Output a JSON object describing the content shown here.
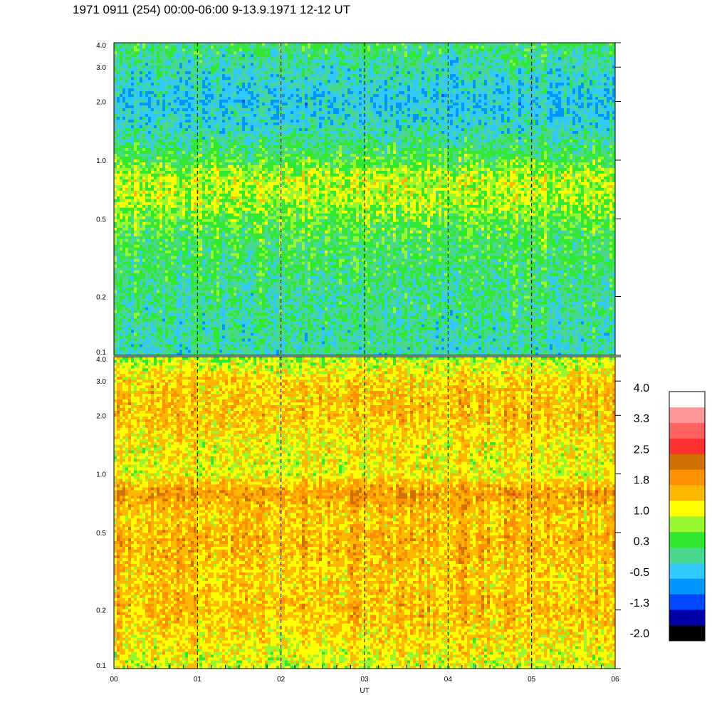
{
  "title": "1971 0911 (254) 00:00-06:00 9-13.9.1971  12-12 UT",
  "chart_data": {
    "type": "heatmap",
    "title": "1971 0911 (254) 00:00-06:00 9-13.9.1971  12-12 UT",
    "xlabel": "UT",
    "ylabel": "",
    "x_ticks": [
      "00",
      "01",
      "02",
      "03",
      "04",
      "05",
      "06"
    ],
    "x_range": [
      0,
      6
    ],
    "dashed_hour_lines": [
      1,
      2,
      3,
      4,
      5
    ],
    "y_scale": "log",
    "y_range": [
      0.1,
      4.0
    ],
    "y_ticks": [
      {
        "value": 4.0,
        "label": "4.0"
      },
      {
        "value": 3.0,
        "label": "3.0"
      },
      {
        "value": 2.0,
        "label": "2.0"
      },
      {
        "value": 1.0,
        "label": "1.0"
      },
      {
        "value": 0.5,
        "label": "0.5"
      },
      {
        "value": 0.2,
        "label": "0.2"
      },
      {
        "value": 0.1,
        "label": "0.1"
      }
    ],
    "panels": [
      {
        "name": "upper",
        "profile": [
          {
            "y": 0.1,
            "level": 0.0
          },
          {
            "y": 0.15,
            "level": 0.1
          },
          {
            "y": 0.2,
            "level": 0.15
          },
          {
            "y": 0.3,
            "level": 0.3
          },
          {
            "y": 0.45,
            "level": 0.5
          },
          {
            "y": 0.6,
            "level": 0.9
          },
          {
            "y": 0.8,
            "level": 1.0
          },
          {
            "y": 1.0,
            "level": 0.5
          },
          {
            "y": 1.5,
            "level": -0.1
          },
          {
            "y": 2.0,
            "level": -0.3
          },
          {
            "y": 3.0,
            "level": 0.0
          },
          {
            "y": 4.0,
            "level": 0.3
          }
        ]
      },
      {
        "name": "lower",
        "profile": [
          {
            "y": 0.1,
            "level": 1.1
          },
          {
            "y": 0.15,
            "level": 1.4
          },
          {
            "y": 0.2,
            "level": 1.6
          },
          {
            "y": 0.3,
            "level": 1.5
          },
          {
            "y": 0.45,
            "level": 1.7
          },
          {
            "y": 0.6,
            "level": 1.5
          },
          {
            "y": 0.8,
            "level": 1.9
          },
          {
            "y": 1.0,
            "level": 1.2
          },
          {
            "y": 1.5,
            "level": 1.3
          },
          {
            "y": 2.0,
            "level": 1.6
          },
          {
            "y": 3.0,
            "level": 1.5
          },
          {
            "y": 4.0,
            "level": 0.9
          }
        ]
      }
    ],
    "colorbar": {
      "labels": [
        "4.0",
        "3.3",
        "2.5",
        "1.8",
        "1.0",
        "0.3",
        "-0.5",
        "-1.3",
        "-2.0"
      ],
      "levels": [
        {
          "min": -2.0,
          "color": "#000000"
        },
        {
          "min": -1.6,
          "color": "#0000a8"
        },
        {
          "min": -1.3,
          "color": "#0048ff"
        },
        {
          "min": -0.9,
          "color": "#0096ff"
        },
        {
          "min": -0.5,
          "color": "#30c8ff"
        },
        {
          "min": -0.1,
          "color": "#48d890"
        },
        {
          "min": 0.3,
          "color": "#30e830"
        },
        {
          "min": 0.7,
          "color": "#98f830"
        },
        {
          "min": 1.0,
          "color": "#ffff00"
        },
        {
          "min": 1.4,
          "color": "#ffb800"
        },
        {
          "min": 1.8,
          "color": "#ff9000"
        },
        {
          "min": 2.1,
          "color": "#d07000"
        },
        {
          "min": 2.5,
          "color": "#ff3030"
        },
        {
          "min": 2.9,
          "color": "#ff6060"
        },
        {
          "min": 3.3,
          "color": "#ff9898"
        },
        {
          "min": 3.6,
          "color": "#ffffff"
        }
      ]
    }
  }
}
